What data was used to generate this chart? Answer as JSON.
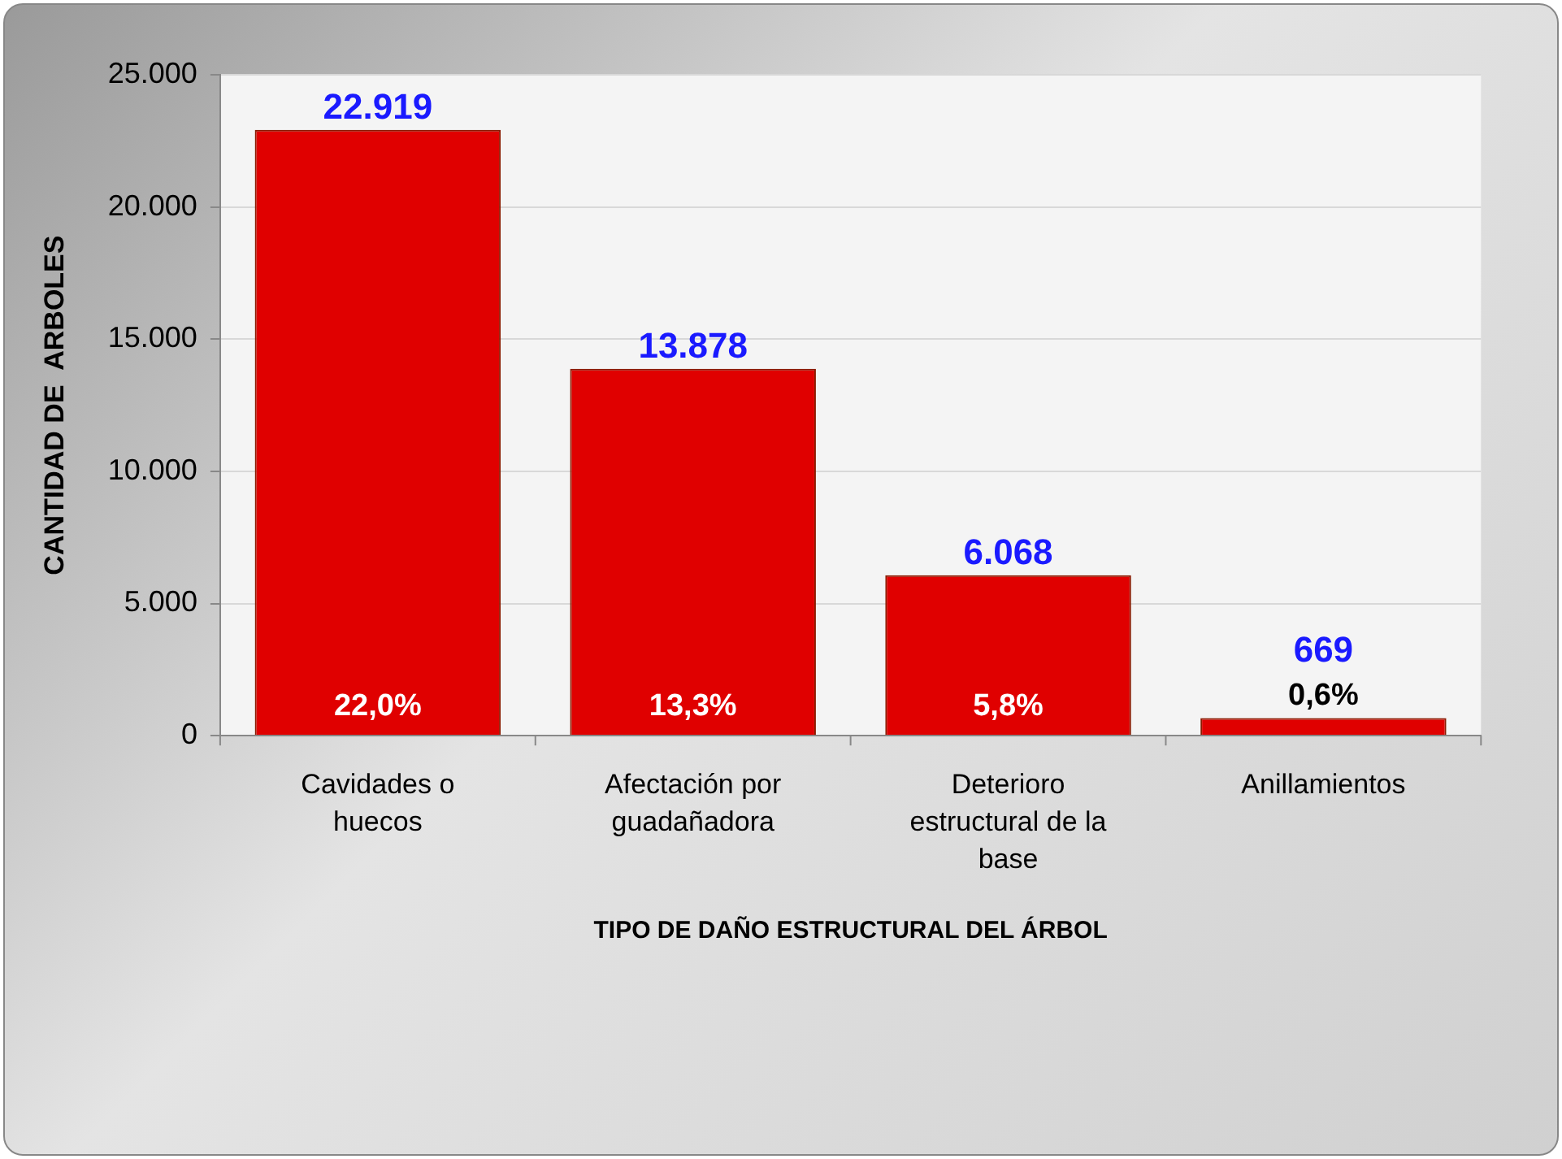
{
  "chart_data": {
    "type": "bar",
    "xlabel": "TIPO DE DAÑO ESTRUCTURAL DEL ÁRBOL",
    "ylabel": "CANTIDAD DE  ARBOLES",
    "categories": [
      "Cavidades o huecos",
      "Afectación por guadañadora",
      "Deterioro estructural de la base",
      "Anillamientos"
    ],
    "values": [
      22919,
      13878,
      6068,
      669
    ],
    "value_labels": [
      "22.919",
      "13.878",
      "6.068",
      "669"
    ],
    "color": "#e00000",
    "ylim": [
      0,
      25000
    ],
    "yticks": [
      {
        "value": 0,
        "label": "0"
      },
      {
        "value": 5000,
        "label": "5.000"
      },
      {
        "value": 10000,
        "label": "10.000"
      },
      {
        "value": 15000,
        "label": "15.000"
      },
      {
        "value": 20000,
        "label": "20.000"
      },
      {
        "value": 25000,
        "label": "25.000"
      }
    ],
    "grid": "y",
    "annotations": [
      "22,0%",
      "13,3%",
      "5,8%",
      "0,6%"
    ]
  }
}
